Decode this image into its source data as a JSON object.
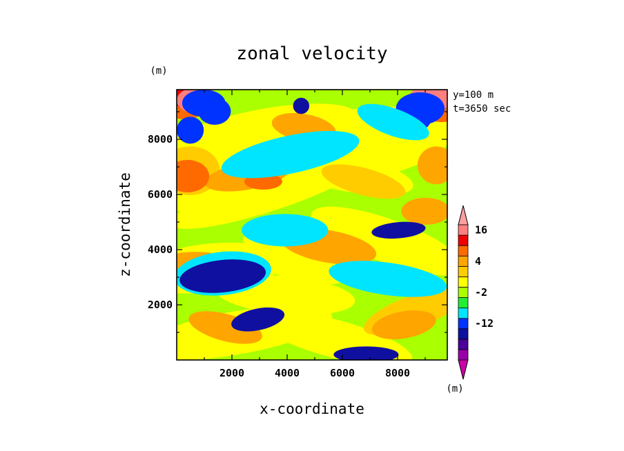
{
  "chart_data": {
    "type": "heatmap",
    "title": "zonal velocity",
    "xlabel": "x-coordinate",
    "ylabel": "z-coordinate",
    "x_unit": "(m)",
    "y_unit": "(m)",
    "xlim": [
      0,
      9800
    ],
    "ylim": [
      0,
      9800
    ],
    "x_ticks": [
      "2000",
      "4000",
      "6000",
      "8000"
    ],
    "y_ticks": [
      "2000",
      "4000",
      "6000",
      "8000"
    ],
    "annotations": [
      "y=100 m",
      "t=3650 sec"
    ],
    "colorbar": {
      "unit": "(m)",
      "tick_labels": [
        "16",
        "4",
        "-2",
        "-12"
      ],
      "levels": [
        -20,
        -16,
        -14,
        -12,
        -8,
        -4,
        -2,
        0,
        2,
        4,
        8,
        12,
        16,
        20
      ],
      "colors": [
        "#cc00a8",
        "#9900aa",
        "#4a0099",
        "#1010a0",
        "#0033ff",
        "#00e5ff",
        "#22ee33",
        "#aaff00",
        "#ffff00",
        "#ffcc00",
        "#ffa500",
        "#ff6a00",
        "#ee0000",
        "#ff7f7f",
        "#ffa0a0"
      ]
    },
    "grid": false
  }
}
